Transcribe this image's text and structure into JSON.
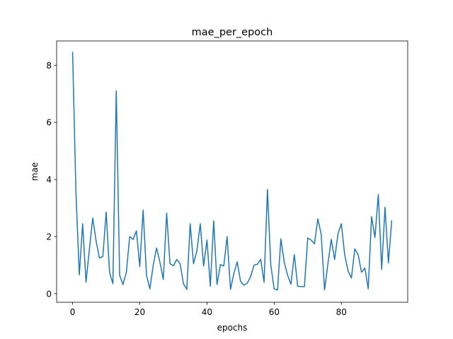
{
  "chart_data": {
    "type": "line",
    "title": "mae_per_epoch",
    "xlabel": "epochs",
    "ylabel": "mae",
    "xlim": [
      -4.75,
      99.75
    ],
    "ylim": [
      -0.3,
      8.85
    ],
    "xticks": [
      0,
      20,
      40,
      60,
      80
    ],
    "yticks": [
      0,
      2,
      4,
      6,
      8
    ],
    "grid": false,
    "series": [
      {
        "color": "#1f77b4",
        "x": [
          0,
          1,
          2,
          3,
          4,
          5,
          6,
          7,
          8,
          9,
          10,
          11,
          12,
          13,
          14,
          15,
          16,
          17,
          18,
          19,
          20,
          21,
          22,
          23,
          24,
          25,
          26,
          27,
          28,
          29,
          30,
          31,
          32,
          33,
          34,
          35,
          36,
          37,
          38,
          39,
          40,
          41,
          42,
          43,
          44,
          45,
          46,
          47,
          48,
          49,
          50,
          51,
          52,
          53,
          54,
          55,
          56,
          57,
          58,
          59,
          60,
          61,
          62,
          63,
          64,
          65,
          66,
          67,
          68,
          69,
          70,
          71,
          72,
          73,
          74,
          75,
          76,
          77,
          78,
          79,
          80,
          81,
          82,
          83,
          84,
          85,
          86,
          87,
          88,
          89,
          90,
          91,
          92,
          93,
          94,
          95
        ],
        "values": [
          8.47,
          3.55,
          0.66,
          2.45,
          0.4,
          1.55,
          2.65,
          1.85,
          1.25,
          1.3,
          2.86,
          0.75,
          0.35,
          7.1,
          0.65,
          0.32,
          0.75,
          2.0,
          1.9,
          2.2,
          0.95,
          2.93,
          0.65,
          0.17,
          1.0,
          1.6,
          1.1,
          0.5,
          2.82,
          1.05,
          0.98,
          1.2,
          1.05,
          0.35,
          0.15,
          2.45,
          1.05,
          1.5,
          2.45,
          0.97,
          1.88,
          0.26,
          2.55,
          0.32,
          1.02,
          0.97,
          2.0,
          0.15,
          0.7,
          1.12,
          0.43,
          0.3,
          0.37,
          0.6,
          1.0,
          1.03,
          1.2,
          0.4,
          3.65,
          1.0,
          0.17,
          0.13,
          1.92,
          1.1,
          0.65,
          0.33,
          1.37,
          0.26,
          0.25,
          0.25,
          1.95,
          1.88,
          1.75,
          2.62,
          2.08,
          0.13,
          1.05,
          1.9,
          1.2,
          2.1,
          2.45,
          1.35,
          0.8,
          0.55,
          1.57,
          1.37,
          0.75,
          0.9,
          0.17,
          2.7,
          1.97,
          3.47,
          0.85,
          3.03,
          1.08,
          2.57
        ]
      }
    ]
  }
}
